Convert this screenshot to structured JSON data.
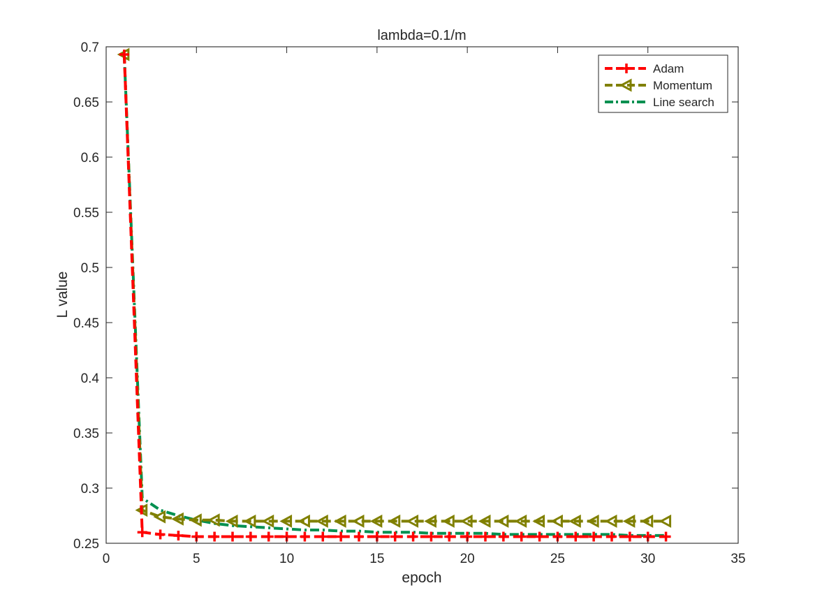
{
  "chart_data": {
    "type": "line",
    "title": "lambda=0.1/m",
    "xlabel": "epoch",
    "ylabel": "L value",
    "xlim": [
      0,
      35
    ],
    "ylim": [
      0.25,
      0.7
    ],
    "xticks": [
      0,
      5,
      10,
      15,
      20,
      25,
      30,
      35
    ],
    "yticks": [
      0.25,
      0.3,
      0.35,
      0.4,
      0.45,
      0.5,
      0.55,
      0.6,
      0.65,
      0.7
    ],
    "xtick_labels": [
      "0",
      "5",
      "10",
      "15",
      "20",
      "25",
      "30",
      "35"
    ],
    "ytick_labels": [
      "0.25",
      "0.3",
      "0.35",
      "0.4",
      "0.45",
      "0.5",
      "0.55",
      "0.6",
      "0.65",
      "0.7"
    ],
    "grid": false,
    "legend_position": "top-right",
    "x": [
      1,
      2,
      3,
      4,
      5,
      6,
      7,
      8,
      9,
      10,
      11,
      12,
      13,
      14,
      15,
      16,
      17,
      18,
      19,
      20,
      21,
      22,
      23,
      24,
      25,
      26,
      27,
      28,
      29,
      30,
      31
    ],
    "series": [
      {
        "name": "Adam",
        "color": "#ff0000",
        "line_style": "dashed",
        "marker": "plus",
        "values": [
          0.693,
          0.26,
          0.258,
          0.257,
          0.256,
          0.256,
          0.256,
          0.256,
          0.256,
          0.256,
          0.256,
          0.256,
          0.256,
          0.256,
          0.256,
          0.256,
          0.256,
          0.256,
          0.256,
          0.256,
          0.256,
          0.256,
          0.256,
          0.256,
          0.256,
          0.256,
          0.256,
          0.256,
          0.256,
          0.256,
          0.256
        ]
      },
      {
        "name": "Momentum",
        "color": "#808000",
        "line_style": "dashed",
        "marker": "triangle-left",
        "values": [
          0.693,
          0.28,
          0.274,
          0.272,
          0.271,
          0.271,
          0.27,
          0.27,
          0.27,
          0.27,
          0.27,
          0.27,
          0.27,
          0.27,
          0.27,
          0.27,
          0.27,
          0.27,
          0.27,
          0.27,
          0.27,
          0.27,
          0.27,
          0.27,
          0.27,
          0.27,
          0.27,
          0.27,
          0.27,
          0.27,
          0.27
        ]
      },
      {
        "name": "Line search",
        "color": "#009050",
        "line_style": "dashdot",
        "marker": "none",
        "values": [
          0.693,
          0.291,
          0.28,
          0.275,
          0.271,
          0.268,
          0.266,
          0.265,
          0.264,
          0.263,
          0.262,
          0.262,
          0.261,
          0.261,
          0.26,
          0.26,
          0.26,
          0.259,
          0.259,
          0.259,
          0.259,
          0.258,
          0.258,
          0.258,
          0.258,
          0.258,
          0.258,
          0.258,
          0.257,
          0.257,
          0.257
        ]
      }
    ]
  }
}
